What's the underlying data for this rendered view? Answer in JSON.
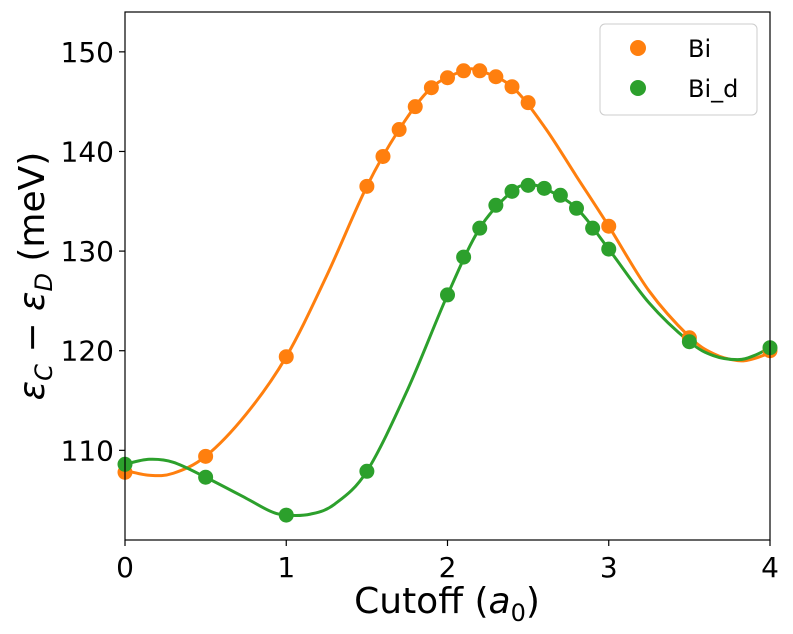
{
  "chart_data": {
    "type": "line",
    "xlabel_main": "Cutoff (",
    "xlabel_var": "a",
    "xlabel_sub": "0",
    "xlabel_close": ")",
    "ylabel_eps1": "ε",
    "ylabel_sub1": "C",
    "ylabel_minus": " − ",
    "ylabel_eps2": "ε",
    "ylabel_sub2": "D",
    "ylabel_unit": " (meV)",
    "xlim": [
      0,
      4
    ],
    "ylim": [
      101,
      154
    ],
    "xticks": [
      0,
      1,
      2,
      3,
      4
    ],
    "xtick_labels": [
      "0",
      "1",
      "2",
      "3",
      "4"
    ],
    "yticks": [
      110,
      120,
      130,
      140,
      150
    ],
    "ytick_labels": [
      "110",
      "120",
      "130",
      "140",
      "150"
    ],
    "legend_position": "top-right",
    "series": [
      {
        "name": "Bi",
        "color": "#ff7f0e",
        "points": [
          {
            "x": 0.0,
            "y": 107.8
          },
          {
            "x": 0.5,
            "y": 109.4
          },
          {
            "x": 1.0,
            "y": 119.4
          },
          {
            "x": 1.5,
            "y": 136.5
          },
          {
            "x": 1.6,
            "y": 139.5
          },
          {
            "x": 1.7,
            "y": 142.2
          },
          {
            "x": 1.8,
            "y": 144.5
          },
          {
            "x": 1.9,
            "y": 146.4
          },
          {
            "x": 2.0,
            "y": 147.4
          },
          {
            "x": 2.1,
            "y": 148.1
          },
          {
            "x": 2.2,
            "y": 148.1
          },
          {
            "x": 2.3,
            "y": 147.5
          },
          {
            "x": 2.4,
            "y": 146.5
          },
          {
            "x": 2.5,
            "y": 144.9
          },
          {
            "x": 3.0,
            "y": 132.5
          },
          {
            "x": 3.5,
            "y": 121.3
          },
          {
            "x": 4.0,
            "y": 120.0
          }
        ],
        "curve": [
          {
            "x": 0.0,
            "y": 108.0
          },
          {
            "x": 0.15,
            "y": 107.5
          },
          {
            "x": 0.3,
            "y": 107.7
          },
          {
            "x": 0.5,
            "y": 109.4
          },
          {
            "x": 0.75,
            "y": 113.6
          },
          {
            "x": 1.0,
            "y": 119.4
          },
          {
            "x": 1.25,
            "y": 127.5
          },
          {
            "x": 1.5,
            "y": 136.5
          },
          {
            "x": 1.7,
            "y": 142.2
          },
          {
            "x": 1.9,
            "y": 146.4
          },
          {
            "x": 2.1,
            "y": 148.1
          },
          {
            "x": 2.2,
            "y": 148.1
          },
          {
            "x": 2.4,
            "y": 146.5
          },
          {
            "x": 2.6,
            "y": 142.5
          },
          {
            "x": 2.8,
            "y": 137.5
          },
          {
            "x": 3.0,
            "y": 132.5
          },
          {
            "x": 3.25,
            "y": 126.0
          },
          {
            "x": 3.5,
            "y": 121.4
          },
          {
            "x": 3.65,
            "y": 119.7
          },
          {
            "x": 3.8,
            "y": 119.0
          },
          {
            "x": 3.9,
            "y": 119.2
          },
          {
            "x": 4.0,
            "y": 119.8
          }
        ]
      },
      {
        "name": "Bi_d",
        "color": "#2ca02c",
        "points": [
          {
            "x": 0.0,
            "y": 108.6
          },
          {
            "x": 0.5,
            "y": 107.3
          },
          {
            "x": 1.0,
            "y": 103.5
          },
          {
            "x": 1.5,
            "y": 107.9
          },
          {
            "x": 2.0,
            "y": 125.6
          },
          {
            "x": 2.1,
            "y": 129.4
          },
          {
            "x": 2.2,
            "y": 132.3
          },
          {
            "x": 2.3,
            "y": 134.6
          },
          {
            "x": 2.4,
            "y": 136.0
          },
          {
            "x": 2.5,
            "y": 136.6
          },
          {
            "x": 2.6,
            "y": 136.3
          },
          {
            "x": 2.7,
            "y": 135.6
          },
          {
            "x": 2.8,
            "y": 134.3
          },
          {
            "x": 2.9,
            "y": 132.3
          },
          {
            "x": 3.0,
            "y": 130.2
          },
          {
            "x": 3.5,
            "y": 120.9
          },
          {
            "x": 4.0,
            "y": 120.3
          }
        ],
        "curve": [
          {
            "x": 0.0,
            "y": 108.6
          },
          {
            "x": 0.15,
            "y": 109.1
          },
          {
            "x": 0.3,
            "y": 108.8
          },
          {
            "x": 0.5,
            "y": 107.3
          },
          {
            "x": 0.75,
            "y": 105.2
          },
          {
            "x": 0.9,
            "y": 103.9
          },
          {
            "x": 1.0,
            "y": 103.5
          },
          {
            "x": 1.15,
            "y": 103.6
          },
          {
            "x": 1.3,
            "y": 104.6
          },
          {
            "x": 1.5,
            "y": 107.9
          },
          {
            "x": 1.75,
            "y": 116.0
          },
          {
            "x": 2.0,
            "y": 125.6
          },
          {
            "x": 2.2,
            "y": 132.3
          },
          {
            "x": 2.4,
            "y": 136.0
          },
          {
            "x": 2.5,
            "y": 136.6
          },
          {
            "x": 2.6,
            "y": 136.3
          },
          {
            "x": 2.8,
            "y": 134.3
          },
          {
            "x": 3.0,
            "y": 130.2
          },
          {
            "x": 3.25,
            "y": 124.8
          },
          {
            "x": 3.5,
            "y": 120.9
          },
          {
            "x": 3.65,
            "y": 119.5
          },
          {
            "x": 3.8,
            "y": 119.1
          },
          {
            "x": 3.9,
            "y": 119.5
          },
          {
            "x": 4.0,
            "y": 120.3
          }
        ]
      }
    ]
  }
}
